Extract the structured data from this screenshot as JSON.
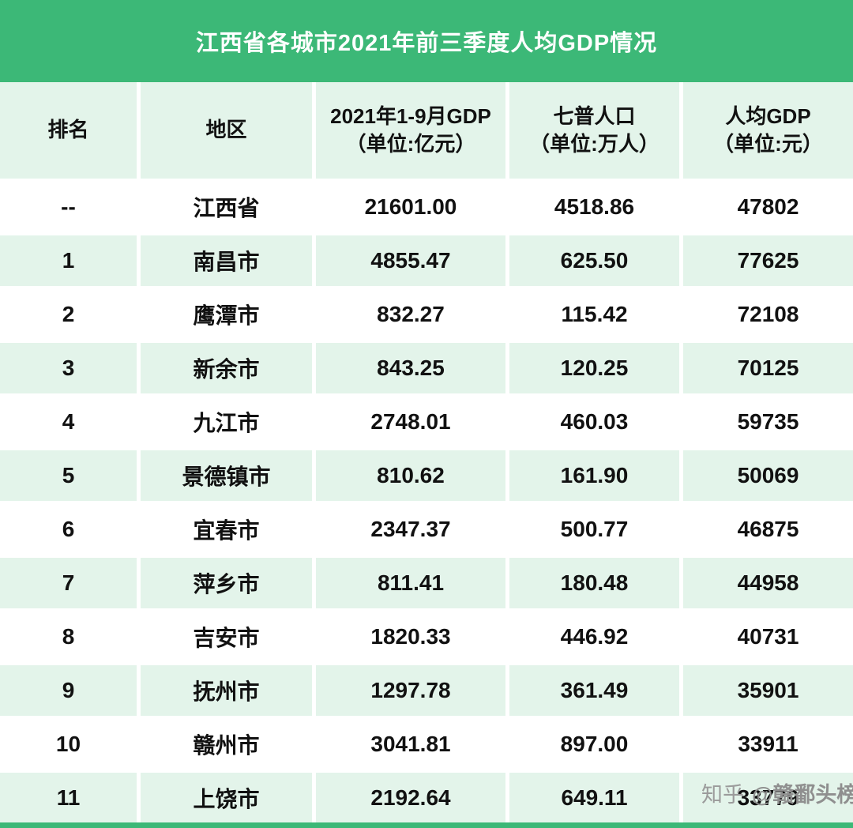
{
  "title_bar": {
    "title": "江西省各城市2021年前三季度人均GDP情况"
  },
  "watermark": {
    "brand": "知乎",
    "handle": "@赣鄱头榜"
  },
  "chart_data": {
    "type": "table",
    "title": "江西省各城市2021年前三季度人均GDP情况",
    "headers": [
      {
        "line1": "排名",
        "line2": ""
      },
      {
        "line1": "地区",
        "line2": ""
      },
      {
        "line1": "2021年1-9月GDP",
        "line2": "（单位:亿元）"
      },
      {
        "line1": "七普人口",
        "line2": "（单位:万人）"
      },
      {
        "line1": "人均GDP",
        "line2": "（单位:元）"
      }
    ],
    "rows": [
      {
        "rank": "--",
        "region": "江西省",
        "gdp": "21601.00",
        "population": "4518.86",
        "per_capita": "47802"
      },
      {
        "rank": "1",
        "region": "南昌市",
        "gdp": "4855.47",
        "population": "625.50",
        "per_capita": "77625"
      },
      {
        "rank": "2",
        "region": "鹰潭市",
        "gdp": "832.27",
        "population": "115.42",
        "per_capita": "72108"
      },
      {
        "rank": "3",
        "region": "新余市",
        "gdp": "843.25",
        "population": "120.25",
        "per_capita": "70125"
      },
      {
        "rank": "4",
        "region": "九江市",
        "gdp": "2748.01",
        "population": "460.03",
        "per_capita": "59735"
      },
      {
        "rank": "5",
        "region": "景德镇市",
        "gdp": "810.62",
        "population": "161.90",
        "per_capita": "50069"
      },
      {
        "rank": "6",
        "region": "宜春市",
        "gdp": "2347.37",
        "population": "500.77",
        "per_capita": "46875"
      },
      {
        "rank": "7",
        "region": "萍乡市",
        "gdp": "811.41",
        "population": "180.48",
        "per_capita": "44958"
      },
      {
        "rank": "8",
        "region": "吉安市",
        "gdp": "1820.33",
        "population": "446.92",
        "per_capita": "40731"
      },
      {
        "rank": "9",
        "region": "抚州市",
        "gdp": "1297.78",
        "population": "361.49",
        "per_capita": "35901"
      },
      {
        "rank": "10",
        "region": "赣州市",
        "gdp": "3041.81",
        "population": "897.00",
        "per_capita": "33911"
      },
      {
        "rank": "11",
        "region": "上饶市",
        "gdp": "2192.64",
        "population": "649.11",
        "per_capita": "33779"
      }
    ]
  }
}
